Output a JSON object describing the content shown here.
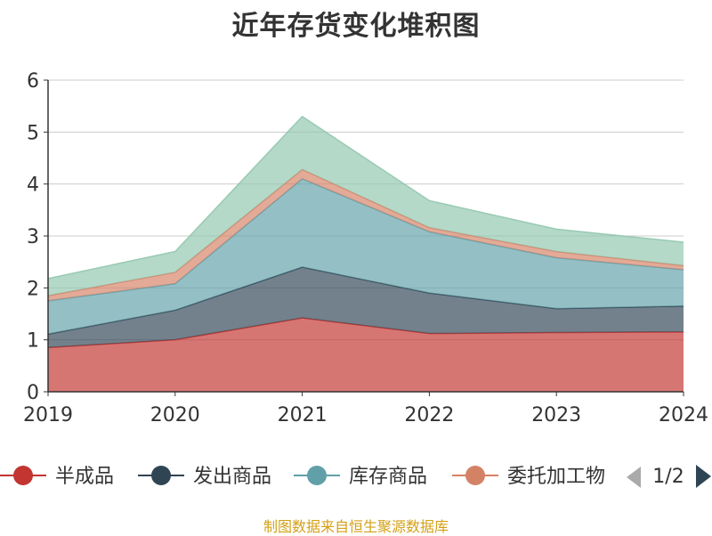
{
  "title": "近年存货变化堆积图",
  "source": "制图数据来自恒生聚源数据库",
  "legend": {
    "page_indicator": "1/2",
    "prev_icon": "triangle-left-icon",
    "next_icon": "triangle-right-icon"
  },
  "chart_data": {
    "type": "area",
    "stacked": true,
    "categories": [
      "2019",
      "2020",
      "2021",
      "2022",
      "2023",
      "2024"
    ],
    "ylim": [
      0,
      6
    ],
    "yticks": [
      0,
      1,
      2,
      3,
      4,
      5,
      6
    ],
    "grid": true,
    "legend_position": "bottom",
    "series": [
      {
        "name": "半成品",
        "color": "#c23531",
        "values": [
          0.85,
          1.0,
          1.42,
          1.12,
          1.14,
          1.15
        ]
      },
      {
        "name": "发出商品",
        "color": "#2f4554",
        "values": [
          0.26,
          0.57,
          0.98,
          0.78,
          0.46,
          0.5
        ]
      },
      {
        "name": "库存商品",
        "color": "#61a0a8",
        "values": [
          0.64,
          0.51,
          1.7,
          1.18,
          0.98,
          0.7
        ]
      },
      {
        "name": "委托加工物资",
        "legend_label": "委托加工物",
        "color": "#d48265",
        "values": [
          0.1,
          0.22,
          0.18,
          0.08,
          0.12,
          0.08
        ]
      },
      {
        "color": "#91c7ae",
        "values": [
          0.33,
          0.4,
          1.02,
          0.52,
          0.43,
          0.45
        ]
      }
    ]
  }
}
